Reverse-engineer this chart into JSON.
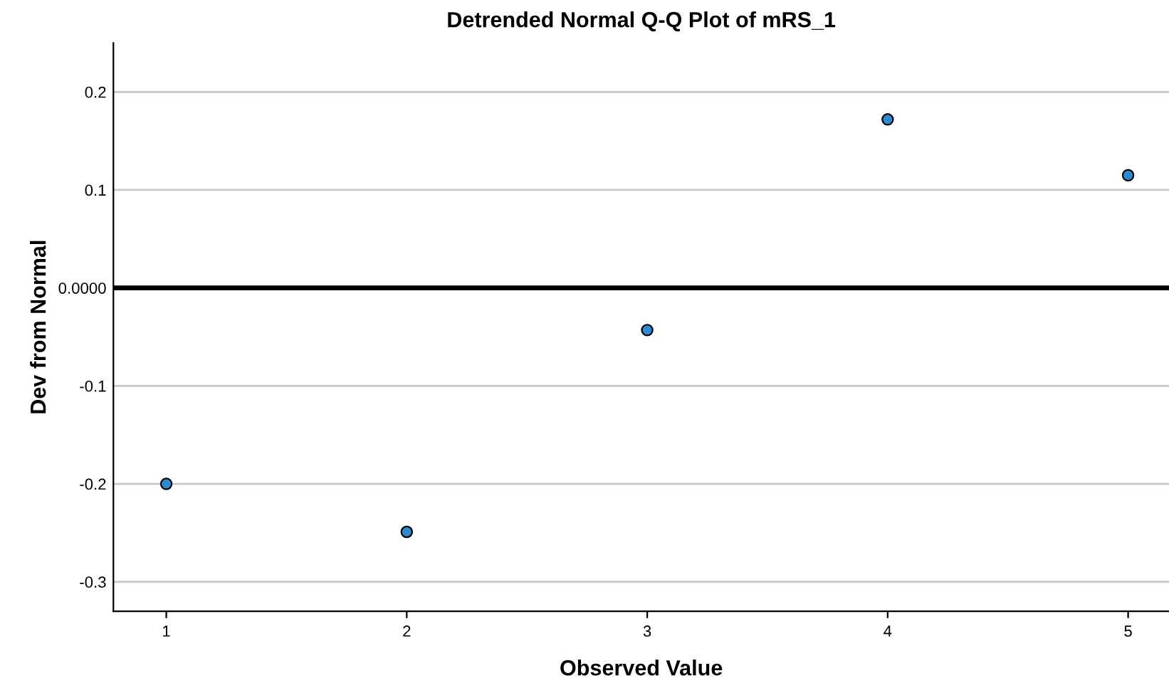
{
  "chart_data": {
    "type": "scatter",
    "title": "Detrended Normal Q-Q Plot of mRS_1",
    "xlabel": "Observed Value",
    "ylabel": "Dev from Normal",
    "x": [
      1,
      2,
      3,
      4,
      5
    ],
    "series": [
      {
        "color": "#2a8bd0",
        "values": [
          -0.2,
          -0.249,
          -0.043,
          0.172,
          0.115
        ]
      }
    ],
    "xlim": [
      0.78,
      5.17
    ],
    "xticks": [
      1,
      2,
      3,
      4,
      5
    ],
    "ylim": [
      -0.33,
      0.25
    ],
    "yticks": [
      {
        "value": -0.3,
        "label": "-0.3"
      },
      {
        "value": -0.2,
        "label": "-0.2"
      },
      {
        "value": -0.1,
        "label": "-0.1"
      },
      {
        "value": 0,
        "label": "0.0000"
      },
      {
        "value": 0.1,
        "label": "0.1"
      },
      {
        "value": 0.2,
        "label": "0.2"
      }
    ],
    "ref_lines": [
      {
        "axis": "y",
        "value": 0,
        "color": "#000000"
      }
    ],
    "grid": "y",
    "marker": "circle",
    "legend": false
  }
}
